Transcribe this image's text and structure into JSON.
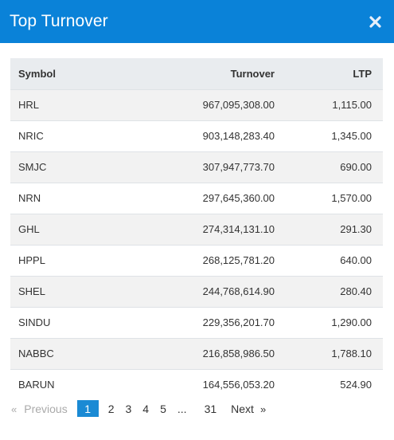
{
  "modal": {
    "title": "Top Turnover"
  },
  "table": {
    "headers": {
      "symbol": "Symbol",
      "turnover": "Turnover",
      "ltp": "LTP"
    },
    "rows": [
      {
        "symbol": "HRL",
        "turnover": "967,095,308.00",
        "ltp": "1,115.00"
      },
      {
        "symbol": "NRIC",
        "turnover": "903,148,283.40",
        "ltp": "1,345.00"
      },
      {
        "symbol": "SMJC",
        "turnover": "307,947,773.70",
        "ltp": "690.00"
      },
      {
        "symbol": "NRN",
        "turnover": "297,645,360.00",
        "ltp": "1,570.00"
      },
      {
        "symbol": "GHL",
        "turnover": "274,314,131.10",
        "ltp": "291.30"
      },
      {
        "symbol": "HPPL",
        "turnover": "268,125,781.20",
        "ltp": "640.00"
      },
      {
        "symbol": "SHEL",
        "turnover": "244,768,614.90",
        "ltp": "280.40"
      },
      {
        "symbol": "SINDU",
        "turnover": "229,356,201.70",
        "ltp": "1,290.00"
      },
      {
        "symbol": "NABBC",
        "turnover": "216,858,986.50",
        "ltp": "1,788.10"
      },
      {
        "symbol": "BARUN",
        "turnover": "164,556,053.20",
        "ltp": "524.90"
      }
    ]
  },
  "pagination": {
    "prev_arrow": "«",
    "prev_label": "Previous",
    "pages": [
      "1",
      "2",
      "3",
      "4",
      "5"
    ],
    "current": "1",
    "ellipsis": "...",
    "last": "31",
    "next_label": "Next",
    "next_arrow": "»"
  },
  "colors": {
    "header_bg": "#0a82d8",
    "active_page_bg": "#1a8ad4"
  },
  "icons": {
    "close": "close-icon"
  }
}
